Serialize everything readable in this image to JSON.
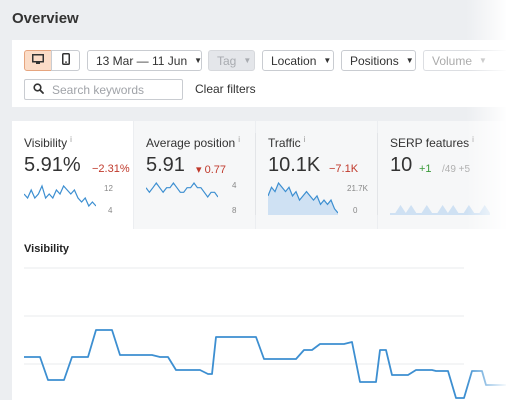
{
  "page": {
    "title": "Overview"
  },
  "filters": {
    "device_desktop_icon": "desktop-icon",
    "device_mobile_icon": "mobile-icon",
    "date_range": "13 Mar — 11 Jun",
    "tag": "Tag",
    "location": "Location",
    "positions": "Positions",
    "volume": "Volume",
    "search": {
      "placeholder": "Search keywords",
      "value": ""
    },
    "clear": "Clear filters"
  },
  "metrics": [
    {
      "title": "Visibility",
      "info": "i",
      "value": "5.91%",
      "delta": "−2.31%",
      "scale_top": "12",
      "scale_bottom": "4",
      "spark": [
        7,
        6,
        8,
        6,
        7,
        9,
        6,
        7,
        6,
        8,
        7,
        9,
        8,
        7,
        8,
        6,
        5,
        6,
        4,
        5,
        4
      ]
    },
    {
      "title": "Average position",
      "info": "i",
      "value": "5.91",
      "delta": "▾ 0.77",
      "scale_top": "4",
      "scale_bottom": "8",
      "spark": [
        7,
        6,
        7,
        8,
        7,
        6,
        7,
        7,
        8,
        7,
        6,
        6,
        7,
        7,
        8,
        7,
        7,
        6,
        5,
        6,
        6,
        5
      ]
    },
    {
      "title": "Traffic",
      "info": "i",
      "value": "10.1K",
      "delta": "−7.1K",
      "scale_top": "21.7K",
      "scale_bottom": "0",
      "spark": [
        14,
        16,
        15,
        17,
        16,
        15,
        16,
        14,
        15,
        13,
        14,
        15,
        14,
        13,
        14,
        12,
        13,
        12,
        13,
        11,
        10
      ]
    },
    {
      "title": "SERP features",
      "info": "i",
      "value": "10",
      "delta": "+1",
      "delta_extra": "/49 +5",
      "spark": [
        3,
        3,
        4,
        3,
        4,
        3,
        3,
        4,
        3,
        3,
        4,
        3,
        4,
        3,
        3,
        4,
        3,
        3,
        4,
        3
      ]
    }
  ],
  "chart": {
    "title": "Visibility"
  },
  "colors": {
    "accent_line": "#3d8fd1",
    "fill": "#cfe1f3",
    "negative": "#c0392b",
    "positive": "#3a9a3a"
  }
}
